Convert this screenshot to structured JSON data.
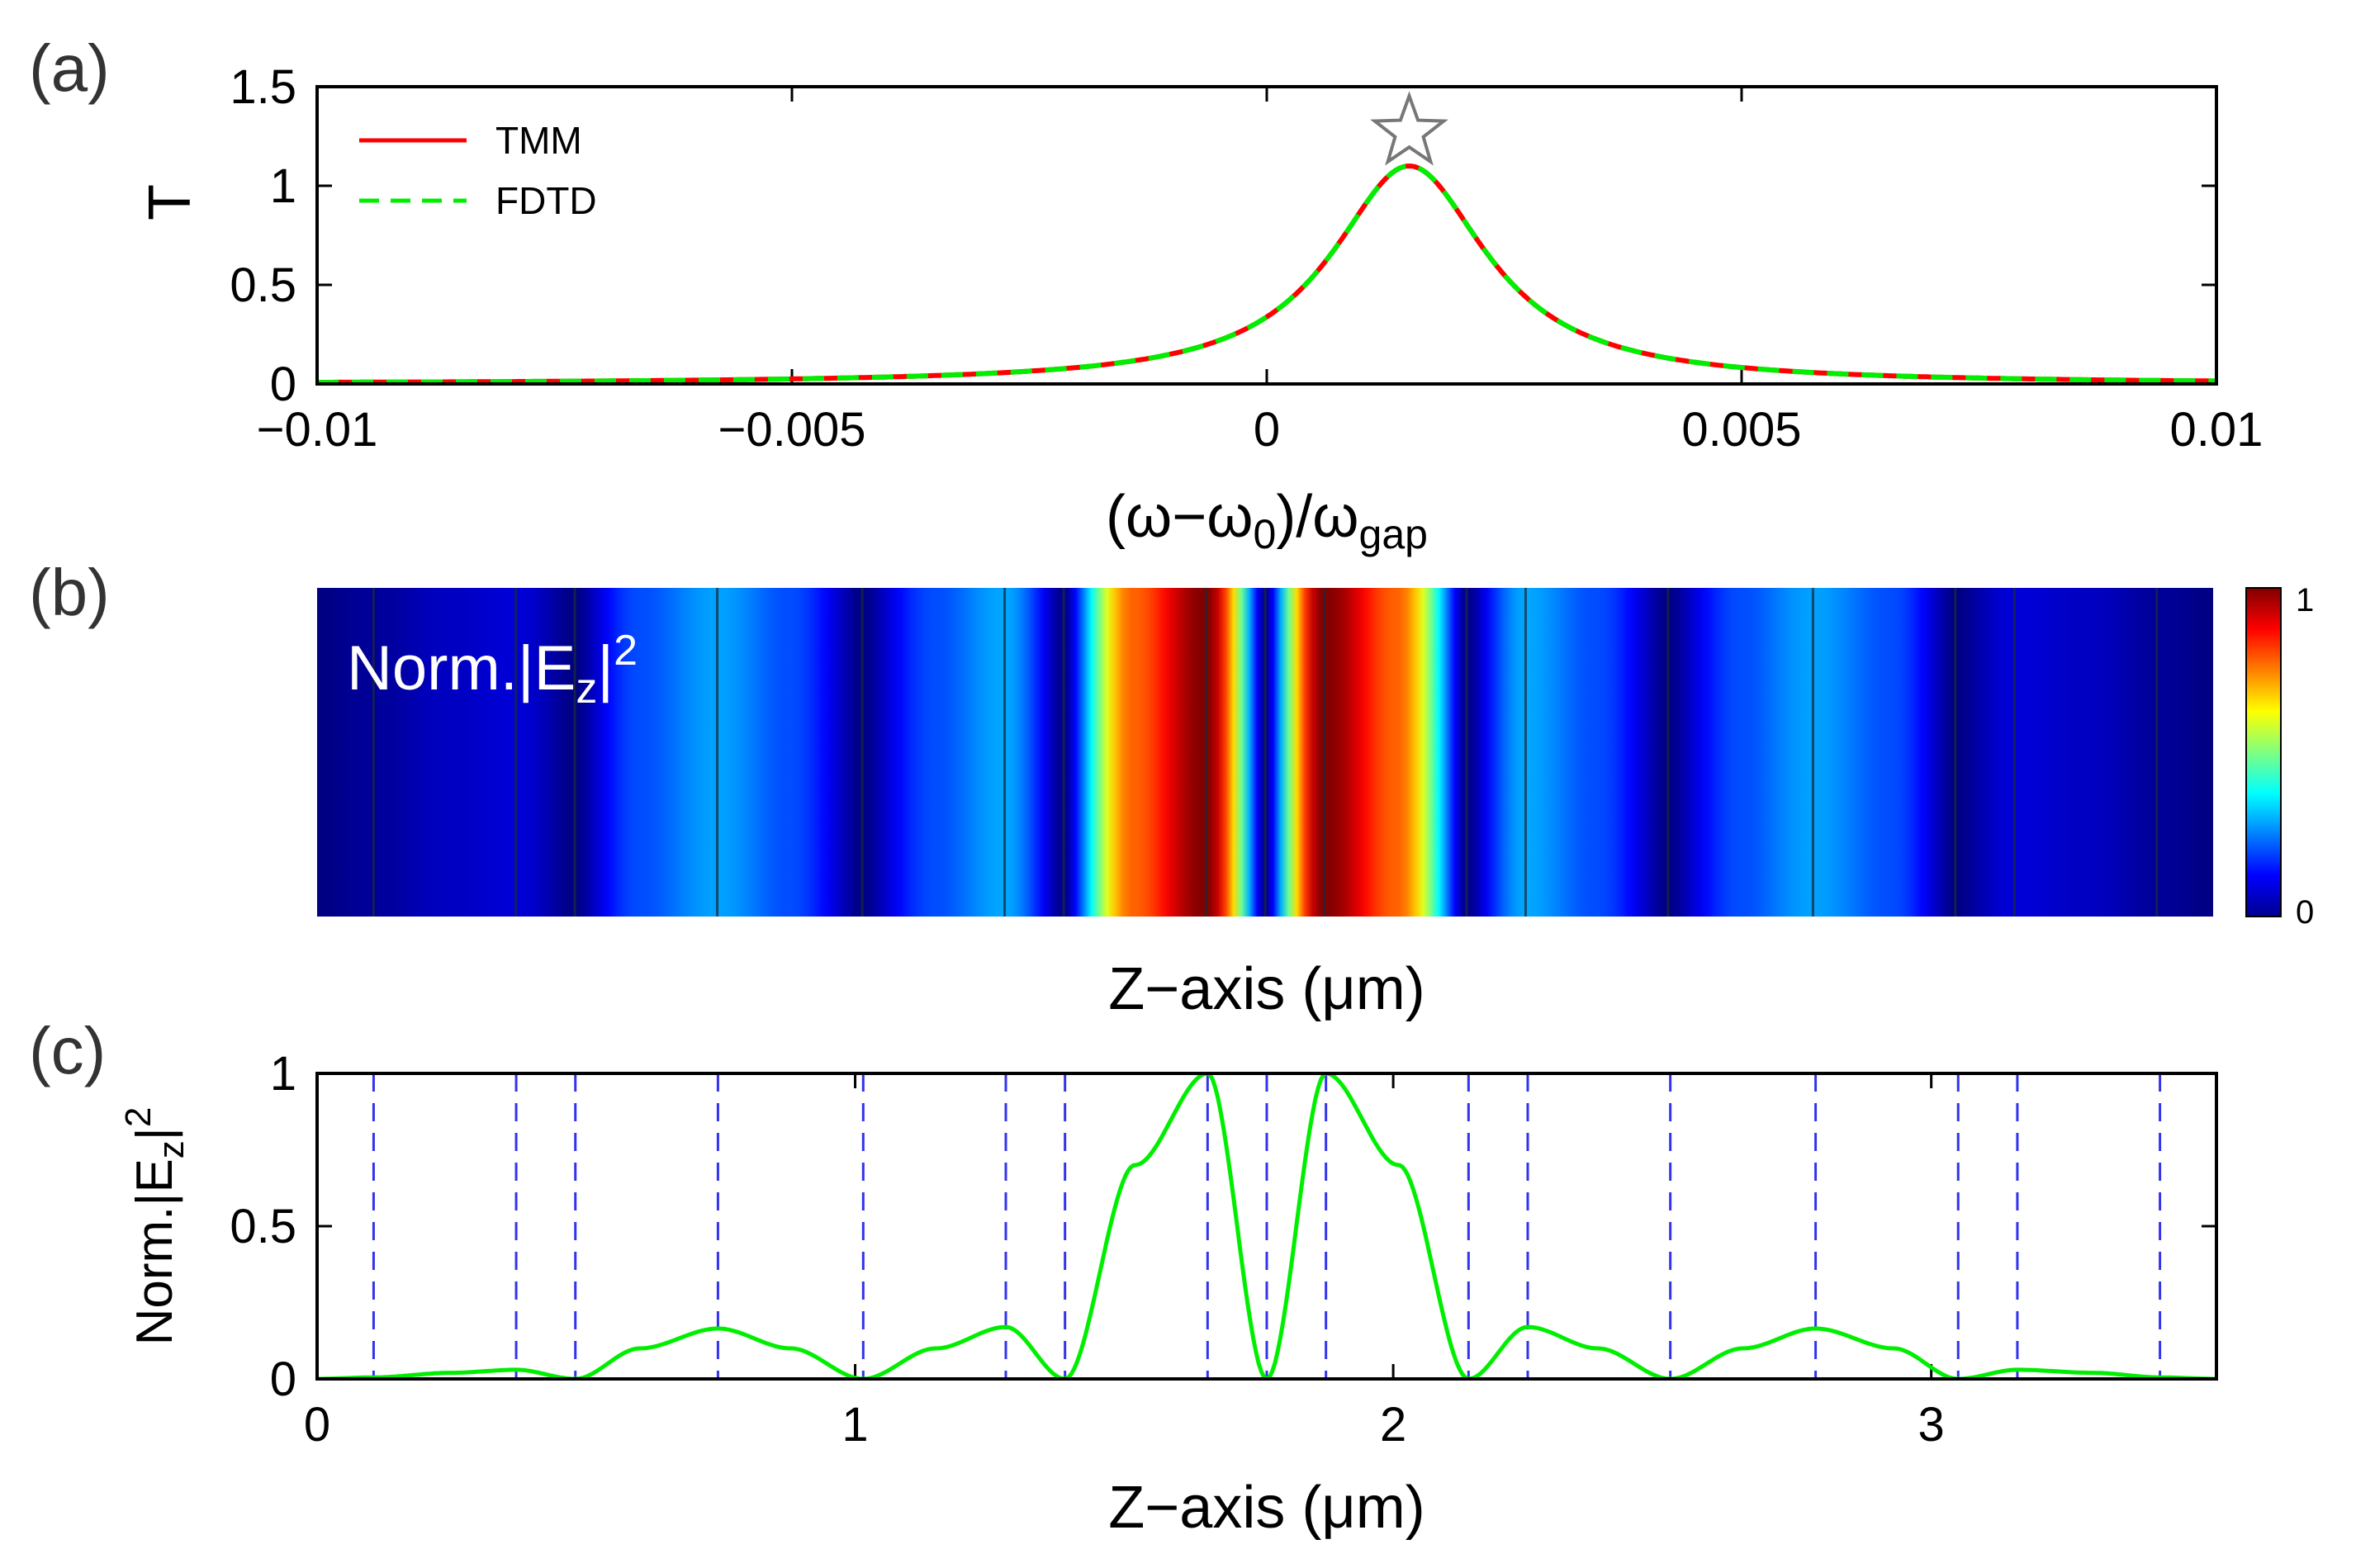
{
  "colors": {
    "tmm": "#ff0000",
    "fdtd": "#00ee00",
    "field_curve": "#00ee00",
    "layer_lines": "#3333ee",
    "axes": "#000000",
    "star": "#777777",
    "heatmap_label": "#ffffff"
  },
  "chart_data": [
    {
      "panel_label": "(a)",
      "type": "line",
      "xlabel": {
        "main": "(ω−ω",
        "sub1": "0",
        "mid": ")/ω",
        "sub2": "gap"
      },
      "ylabel": "T",
      "xlim": [
        -0.01,
        0.01
      ],
      "ylim": [
        0,
        1.5
      ],
      "xticks": [
        -0.01,
        -0.005,
        0,
        0.005,
        0.01
      ],
      "xtick_labels": [
        "−0.01",
        "−0.005",
        "0",
        "0.005",
        "0.01"
      ],
      "yticks": [
        0,
        0.5,
        1,
        1.5
      ],
      "ytick_labels": [
        "0",
        "0.5",
        "1",
        "1.5"
      ],
      "legend_position": "top-left",
      "series": [
        {
          "name": "TMM",
          "style": "solid",
          "color": "#ff0000"
        },
        {
          "name": "FDTD",
          "style": "dashed",
          "color": "#00ee00"
        }
      ],
      "resonance": {
        "x0": 0.0015,
        "peak": 1.1,
        "half_width": 0.001
      },
      "marker": {
        "shape": "star",
        "x": 0.0015,
        "y": 1.27
      }
    },
    {
      "panel_label": "(b)",
      "type": "heatmap",
      "annotation": {
        "main": "Norm.|E",
        "sub": "z",
        "tail": "|",
        "sup": "2"
      },
      "xlabel": "Z−axis (μm)",
      "xlim": [
        0,
        3.53
      ],
      "colorbar_ticks": [
        {
          "value": 1,
          "label": "1"
        },
        {
          "value": 0,
          "label": "0"
        }
      ],
      "layer_boundaries": [
        0.105,
        0.37,
        0.48,
        0.745,
        1.015,
        1.28,
        1.39,
        1.655,
        1.765,
        1.875,
        2.14,
        2.25,
        2.515,
        2.785,
        3.05,
        3.16,
        3.425
      ]
    },
    {
      "panel_label": "(c)",
      "type": "line",
      "xlabel": "Z−axis (μm)",
      "ylabel": {
        "main": "Norm.|E",
        "sub": "z",
        "tail": "|",
        "sup": "2"
      },
      "xlim": [
        0,
        3.53
      ],
      "ylim": [
        0,
        1
      ],
      "xticks": [
        0,
        1,
        2,
        3
      ],
      "xtick_labels": [
        "0",
        "1",
        "2",
        "3"
      ],
      "yticks": [
        0,
        0.5,
        1
      ],
      "ytick_labels": [
        "0",
        "0.5",
        "1"
      ],
      "layer_boundaries": [
        0.105,
        0.37,
        0.48,
        0.745,
        1.015,
        1.28,
        1.39,
        1.655,
        1.765,
        1.875,
        2.14,
        2.25,
        2.515,
        2.785,
        3.05,
        3.16,
        3.425
      ],
      "field_points": [
        [
          0,
          0
        ],
        [
          0.105,
          0.005
        ],
        [
          0.25,
          0.02
        ],
        [
          0.37,
          0.03
        ],
        [
          0.48,
          0
        ],
        [
          0.6,
          0.1
        ],
        [
          0.745,
          0.165
        ],
        [
          0.88,
          0.1
        ],
        [
          1.015,
          0
        ],
        [
          1.15,
          0.1
        ],
        [
          1.28,
          0.17
        ],
        [
          1.39,
          0
        ],
        [
          1.52,
          0.7
        ],
        [
          1.655,
          1.0
        ],
        [
          1.765,
          0
        ],
        [
          1.875,
          1.0
        ],
        [
          2.01,
          0.7
        ],
        [
          2.14,
          0
        ],
        [
          2.25,
          0.17
        ],
        [
          2.38,
          0.1
        ],
        [
          2.515,
          0
        ],
        [
          2.65,
          0.1
        ],
        [
          2.785,
          0.165
        ],
        [
          2.93,
          0.1
        ],
        [
          3.05,
          0
        ],
        [
          3.16,
          0.03
        ],
        [
          3.3,
          0.02
        ],
        [
          3.425,
          0.005
        ],
        [
          3.53,
          0
        ]
      ]
    }
  ]
}
